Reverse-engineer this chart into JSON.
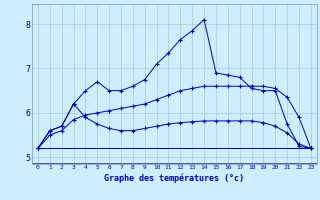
{
  "xlabel": "Graphe des températures (°c)",
  "background_color": "#cceeff",
  "line_color": "#0000bb",
  "grid_color": "#aacccc",
  "xlim": [
    -0.5,
    23.5
  ],
  "ylim": [
    4.85,
    8.45
  ],
  "xticks": [
    0,
    1,
    2,
    3,
    4,
    5,
    6,
    7,
    8,
    9,
    10,
    11,
    12,
    13,
    14,
    15,
    16,
    17,
    18,
    19,
    20,
    21,
    22,
    23
  ],
  "yticks": [
    5,
    6,
    7,
    8
  ],
  "line1_x": [
    0,
    1,
    2,
    3,
    4,
    5,
    6,
    7,
    8,
    9,
    10,
    11,
    12,
    13,
    14,
    15,
    16,
    17,
    18,
    19,
    20,
    21,
    22,
    23
  ],
  "line1_y": [
    5.2,
    5.6,
    5.7,
    6.2,
    6.5,
    6.7,
    6.5,
    6.5,
    6.6,
    6.75,
    7.1,
    7.35,
    7.65,
    7.85,
    8.1,
    6.9,
    6.85,
    6.8,
    6.55,
    6.5,
    6.5,
    5.75,
    5.25,
    5.2
  ],
  "line2_x": [
    0,
    1,
    2,
    3,
    4,
    5,
    6,
    7,
    8,
    9,
    10,
    11,
    12,
    13,
    14,
    15,
    16,
    17,
    18,
    19,
    20,
    21,
    22,
    23
  ],
  "line2_y": [
    5.2,
    5.6,
    5.7,
    6.2,
    5.9,
    5.75,
    5.65,
    5.6,
    5.6,
    5.65,
    5.7,
    5.75,
    5.78,
    5.8,
    5.82,
    5.82,
    5.82,
    5.82,
    5.82,
    5.78,
    5.7,
    5.55,
    5.3,
    5.2
  ],
  "line3_x": [
    0,
    23
  ],
  "line3_y": [
    5.2,
    5.2
  ],
  "line4_x": [
    0,
    1,
    2,
    3,
    4,
    5,
    6,
    7,
    8,
    9,
    10,
    11,
    12,
    13,
    14,
    15,
    16,
    17,
    18,
    19,
    20,
    21,
    22,
    23
  ],
  "line4_y": [
    5.2,
    5.5,
    5.6,
    5.85,
    5.95,
    6.0,
    6.05,
    6.1,
    6.15,
    6.2,
    6.3,
    6.4,
    6.5,
    6.55,
    6.6,
    6.6,
    6.6,
    6.6,
    6.6,
    6.6,
    6.55,
    6.35,
    5.9,
    5.2
  ]
}
